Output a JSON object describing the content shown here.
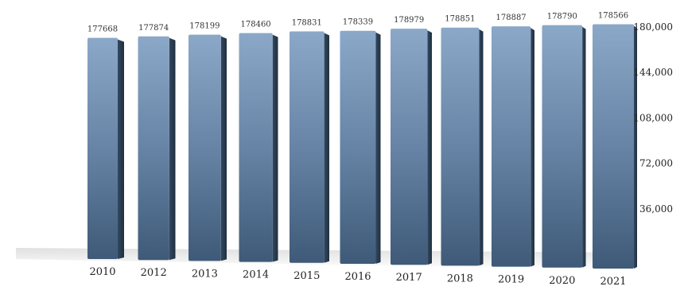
{
  "chart_data": {
    "type": "bar",
    "categories": [
      "2010",
      "2012",
      "2013",
      "2014",
      "2015",
      "2016",
      "2017",
      "2018",
      "2019",
      "2020",
      "2021"
    ],
    "series": [
      {
        "values": [
          177668,
          177874,
          178199,
          178460,
          178831,
          178339,
          178979,
          178851,
          178887,
          178790,
          178566
        ],
        "value_labels": [
          "177668",
          "177874",
          "178199",
          "178460",
          "178831",
          "178339",
          "178979",
          "178851",
          "178887",
          "178790",
          "178566"
        ]
      }
    ],
    "ylim": [
      0,
      180000
    ],
    "yticks": [
      36000,
      72000,
      108000,
      144000,
      180000
    ],
    "ytick_labels": [
      "36,000",
      "72,000",
      "108,000",
      "144,000",
      "180,000"
    ],
    "y_axis_side": "right",
    "grid": false,
    "legend": false,
    "bar_color": "#5d7a9c",
    "bar_side_color": "#2d4258"
  }
}
